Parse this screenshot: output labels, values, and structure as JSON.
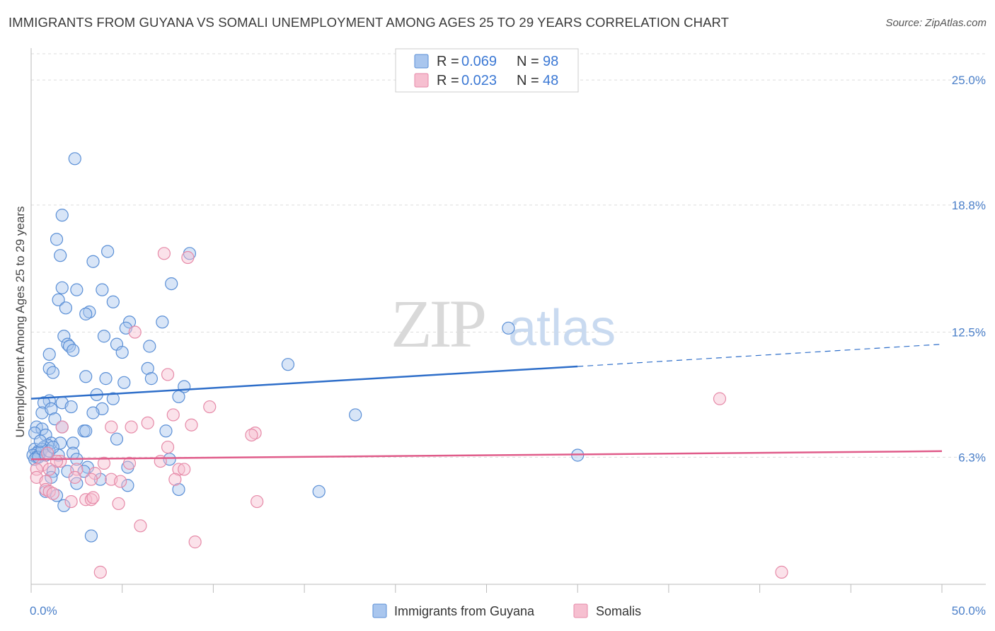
{
  "title": "IMMIGRANTS FROM GUYANA VS SOMALI UNEMPLOYMENT AMONG AGES 25 TO 29 YEARS CORRELATION CHART",
  "source": "Source: ZipAtlas.com",
  "watermark": {
    "zip": "ZIP",
    "atlas": "atlas"
  },
  "colors": {
    "blue_fill": "#a9c6ee",
    "blue_stroke": "#5a8fd6",
    "blue_line": "#2e6ec9",
    "pink_fill": "#f6bfd0",
    "pink_stroke": "#e68aa8",
    "pink_line": "#e05c8a",
    "grid": "#dddddd",
    "label": "#4a7fc9"
  },
  "chart_data": {
    "type": "scatter",
    "title": "IMMIGRANTS FROM GUYANA VS SOMALI UNEMPLOYMENT AMONG AGES 25 TO 29 YEARS CORRELATION CHART",
    "ylabel": "Unemployment Among Ages 25 to 29 years",
    "xlim": [
      0,
      50
    ],
    "ylim": [
      0,
      26.3
    ],
    "y_ticks": [
      {
        "value": 6.3,
        "label": "6.3%"
      },
      {
        "value": 12.5,
        "label": "12.5%"
      },
      {
        "value": 18.8,
        "label": "18.8%"
      },
      {
        "value": 25.0,
        "label": "25.0%"
      }
    ],
    "x_tick_values": [
      0,
      5,
      10,
      15,
      20,
      25,
      30,
      35,
      40,
      45,
      50
    ],
    "x_labels": {
      "min": "0.0%",
      "max": "50.0%"
    },
    "legend": [
      {
        "name": "Immigrants from Guyana",
        "r_label": "R =",
        "r": "0.069",
        "n_label": "N =",
        "n": "98"
      },
      {
        "name": "Somalis",
        "r_label": "R =",
        "r": "0.023",
        "n_label": "N =",
        "n": "48"
      }
    ],
    "series": [
      {
        "name": "Immigrants from Guyana",
        "trend": {
          "x0": 0,
          "y0": 9.2,
          "x1": 30,
          "y1": 10.8,
          "x_dash_end": 50,
          "y_dash_end": 11.9
        },
        "points": [
          [
            2.4,
            21.1
          ],
          [
            1.7,
            18.3
          ],
          [
            1.4,
            17.1
          ],
          [
            1.6,
            16.3
          ],
          [
            4.2,
            16.5
          ],
          [
            3.4,
            16.0
          ],
          [
            8.7,
            16.4
          ],
          [
            1.7,
            14.7
          ],
          [
            2.5,
            14.6
          ],
          [
            3.9,
            14.6
          ],
          [
            7.7,
            14.9
          ],
          [
            1.5,
            14.1
          ],
          [
            4.5,
            14.0
          ],
          [
            1.9,
            13.7
          ],
          [
            3.2,
            13.5
          ],
          [
            3.0,
            13.4
          ],
          [
            7.2,
            13.0
          ],
          [
            5.4,
            13.0
          ],
          [
            5.2,
            12.7
          ],
          [
            1.8,
            12.3
          ],
          [
            4.0,
            12.3
          ],
          [
            2.0,
            11.9
          ],
          [
            2.1,
            11.8
          ],
          [
            4.7,
            11.9
          ],
          [
            6.5,
            11.8
          ],
          [
            2.3,
            11.6
          ],
          [
            5.0,
            11.5
          ],
          [
            1.0,
            11.4
          ],
          [
            1.0,
            10.7
          ],
          [
            1.2,
            10.5
          ],
          [
            3.0,
            10.3
          ],
          [
            4.1,
            10.2
          ],
          [
            6.4,
            10.7
          ],
          [
            6.6,
            10.2
          ],
          [
            5.1,
            10.0
          ],
          [
            8.4,
            9.8
          ],
          [
            3.6,
            9.4
          ],
          [
            8.1,
            9.3
          ],
          [
            4.5,
            9.2
          ],
          [
            1.0,
            9.1
          ],
          [
            0.7,
            9.0
          ],
          [
            1.7,
            9.0
          ],
          [
            2.2,
            8.8
          ],
          [
            3.9,
            8.7
          ],
          [
            0.6,
            8.5
          ],
          [
            1.1,
            8.7
          ],
          [
            1.3,
            8.2
          ],
          [
            3.4,
            8.5
          ],
          [
            1.7,
            7.8
          ],
          [
            0.3,
            7.8
          ],
          [
            0.6,
            7.7
          ],
          [
            2.9,
            7.6
          ],
          [
            3.0,
            7.6
          ],
          [
            0.2,
            7.5
          ],
          [
            0.8,
            7.4
          ],
          [
            7.4,
            7.6
          ],
          [
            4.7,
            7.2
          ],
          [
            1.1,
            7.0
          ],
          [
            1.6,
            7.0
          ],
          [
            2.3,
            7.0
          ],
          [
            0.9,
            6.9
          ],
          [
            0.7,
            6.8
          ],
          [
            0.2,
            6.7
          ],
          [
            0.4,
            6.6
          ],
          [
            0.3,
            6.5
          ],
          [
            0.5,
            6.5
          ],
          [
            0.1,
            6.4
          ],
          [
            0.3,
            6.3
          ],
          [
            0.2,
            6.2
          ],
          [
            0.4,
            6.3
          ],
          [
            0.6,
            6.7
          ],
          [
            0.8,
            6.4
          ],
          [
            1.0,
            6.6
          ],
          [
            1.5,
            6.4
          ],
          [
            2.3,
            6.5
          ],
          [
            2.5,
            6.2
          ],
          [
            3.1,
            5.8
          ],
          [
            5.3,
            5.8
          ],
          [
            7.6,
            6.2
          ],
          [
            1.2,
            5.6
          ],
          [
            2.0,
            5.6
          ],
          [
            2.9,
            5.6
          ],
          [
            3.8,
            5.2
          ],
          [
            1.1,
            5.3
          ],
          [
            2.5,
            5.0
          ],
          [
            5.3,
            4.9
          ],
          [
            0.8,
            4.6
          ],
          [
            8.1,
            4.7
          ],
          [
            1.4,
            4.4
          ],
          [
            1.8,
            3.9
          ],
          [
            3.3,
            2.4
          ],
          [
            14.1,
            10.9
          ],
          [
            17.8,
            8.4
          ],
          [
            26.2,
            12.7
          ],
          [
            15.8,
            4.6
          ],
          [
            30.0,
            6.4
          ],
          [
            1.2,
            6.8
          ],
          [
            0.5,
            7.1
          ]
        ]
      },
      {
        "name": "Somalis",
        "trend": {
          "x0": 0,
          "y0": 6.2,
          "x1": 50,
          "y1": 6.6
        },
        "points": [
          [
            7.3,
            16.4
          ],
          [
            8.6,
            16.2
          ],
          [
            5.7,
            12.5
          ],
          [
            7.5,
            10.4
          ],
          [
            9.8,
            8.8
          ],
          [
            7.8,
            8.4
          ],
          [
            6.4,
            8.0
          ],
          [
            8.8,
            7.9
          ],
          [
            4.4,
            7.8
          ],
          [
            5.5,
            7.8
          ],
          [
            12.3,
            7.5
          ],
          [
            12.1,
            7.4
          ],
          [
            7.5,
            6.8
          ],
          [
            1.7,
            7.8
          ],
          [
            0.9,
            6.5
          ],
          [
            1.6,
            6.1
          ],
          [
            0.6,
            5.9
          ],
          [
            0.3,
            5.7
          ],
          [
            1.4,
            6.1
          ],
          [
            2.5,
            5.7
          ],
          [
            3.5,
            5.5
          ],
          [
            4.0,
            6.0
          ],
          [
            5.4,
            6.0
          ],
          [
            8.1,
            5.7
          ],
          [
            8.4,
            5.7
          ],
          [
            7.1,
            6.1
          ],
          [
            1.0,
            5.7
          ],
          [
            2.4,
            5.3
          ],
          [
            0.3,
            5.3
          ],
          [
            0.8,
            5.1
          ],
          [
            3.3,
            5.2
          ],
          [
            4.4,
            5.2
          ],
          [
            7.9,
            5.2
          ],
          [
            4.9,
            5.1
          ],
          [
            0.8,
            4.7
          ],
          [
            1.0,
            4.6
          ],
          [
            1.2,
            4.5
          ],
          [
            3.0,
            4.2
          ],
          [
            3.3,
            4.2
          ],
          [
            3.4,
            4.3
          ],
          [
            2.2,
            4.1
          ],
          [
            4.8,
            4.0
          ],
          [
            12.4,
            4.1
          ],
          [
            6.0,
            2.9
          ],
          [
            9.0,
            2.1
          ],
          [
            3.8,
            0.6
          ],
          [
            37.8,
            9.2
          ],
          [
            41.2,
            0.6
          ]
        ]
      }
    ]
  }
}
